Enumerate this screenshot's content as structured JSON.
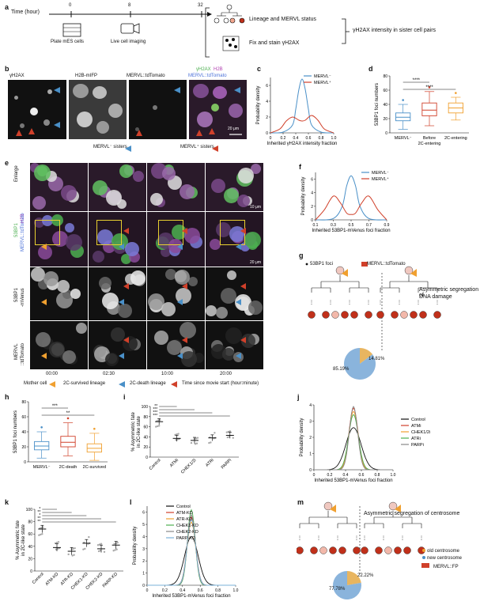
{
  "panels": {
    "a": {
      "label": "a",
      "time_label": "Time (hour)",
      "ticks": [
        "0",
        "8",
        "32"
      ],
      "step1": "Plate mES cells",
      "step2": "Live cell imaging",
      "out1": "Lineage and MERVL status",
      "out2": "Fix and stain γH2AX",
      "result": "γH2AX intensity in sister cell pairs"
    },
    "b": {
      "label": "b",
      "titles": [
        "γH2AX",
        "H2B-mIFP",
        "MERVL::tdTomato"
      ],
      "merge_title_1": "γH2AX",
      "merge_title_2": "H2B",
      "merge_title_3": "MERVL::tdTomato",
      "scale": "20 μm",
      "legend_neg": "MERVL⁻ sisters",
      "legend_pos": "MERVL⁺ sisters"
    },
    "c": {
      "label": "c",
      "ylabel": "Probability density",
      "xlabel": "Inherited γH2AX intensity fraction",
      "yticks": [
        "0",
        "2",
        "4",
        "6"
      ],
      "xticks": [
        "0",
        "0.2",
        "0.4",
        "0.6",
        "0.8",
        "1.0"
      ],
      "legend": [
        "MERVL⁻",
        "MERVL⁺"
      ]
    },
    "d": {
      "label": "d",
      "ylabel": "53BP1 foci numbers",
      "yticks": [
        "0",
        "20",
        "40",
        "60",
        "80"
      ],
      "categories": [
        "MERVL⁻",
        "Before\n2C-entering",
        "2C-entering"
      ],
      "cat1": "MERVL⁻",
      "cat2a": "Before",
      "cat2b": "2C-entering",
      "cat3": "2C-entering",
      "sig": [
        "****",
        "****"
      ]
    },
    "e": {
      "label": "e",
      "row_labels": [
        "Enlarge",
        "53BP1 H2B MERVL::tdTomato",
        "53BP1 -mVenus",
        "MERVL ::tdTomato"
      ],
      "row1": "Enlarge",
      "row2a": "53BP1",
      "row2b": "H2B",
      "row2c": "MERVL::tdTomato",
      "row3a": "53BP1",
      "row3b": "-mVenus",
      "row4a": "MERVL",
      "row4b": "::tdTomato",
      "scale_small": "10 μm",
      "scale_big": "20 μm",
      "times": [
        "00:00",
        "02:30",
        "10:00",
        "20:00"
      ],
      "legend": [
        "Mother cell",
        "2C-survived lineage",
        "2C-death lineage",
        "Time since movie start (hour:minute)"
      ]
    },
    "f": {
      "label": "f",
      "ylabel": "Probability density",
      "xlabel": "Inherited 53BP1-mVenus foci fraction",
      "yticks": [
        "0",
        "2",
        "4",
        "6"
      ],
      "xticks": [
        "0.1",
        "0.3",
        "0.5",
        "0.7",
        "0.9"
      ],
      "legend": [
        "MERVL⁻",
        "MERVL⁺"
      ]
    },
    "g": {
      "label": "g",
      "legend_foci": "53BP1 foci",
      "legend_mervl": "MERVL::tdTomato",
      "title": "Asymmetric segregation of DNA damage",
      "title_a": "Asymmetric segregation of",
      "title_b": "DNA damage",
      "pie_major": "85.19%",
      "pie_minor": "14.81%"
    },
    "h": {
      "label": "h",
      "ylabel": "53BP1 foci numbers",
      "yticks": [
        "0",
        "20",
        "40",
        "60",
        "80"
      ],
      "categories": [
        "MERVL⁻",
        "2C-death",
        "2C-survived"
      ],
      "sig": [
        "***",
        "**"
      ]
    },
    "i": {
      "label": "i",
      "ylabel": "% Asymmetric fate in 2C-like state",
      "ylabel_a": "% Asymmetric fate",
      "ylabel_b": "in 2C-like state",
      "yticks": [
        "0",
        "20",
        "40",
        "60",
        "80",
        "100"
      ],
      "categories": [
        "Control",
        "ATMi",
        "CHEK1/2i",
        "ATRi",
        "PARPi"
      ],
      "sig": [
        "**",
        "***",
        "***",
        "***",
        "**"
      ]
    },
    "j": {
      "label": "j",
      "ylabel": "Probability density",
      "xlabel": "Inherited 53BP1-mVenus foci fraction",
      "yticks": [
        "0",
        "1",
        "2",
        "3",
        "4"
      ],
      "xticks": [
        "0",
        "0.2",
        "0.4",
        "0.6",
        "0.8",
        "1.0"
      ],
      "legend": [
        "Control",
        "ATMi",
        "CHEK1/2i",
        "ATRi",
        "PARPi"
      ]
    },
    "k": {
      "label": "k",
      "ylabel_a": "% Asymmetric fate",
      "ylabel_b": "in 2C-like state",
      "yticks": [
        "0",
        "20",
        "40",
        "60",
        "80",
        "100"
      ],
      "categories": [
        "Control",
        "ATM-KD",
        "ATR-KD",
        "CHEK1-KD",
        "CHEK2-KD",
        "PARP-KD"
      ],
      "sig": [
        "*",
        "**",
        "*",
        "**",
        "**",
        "**"
      ]
    },
    "l": {
      "label": "l",
      "ylabel": "Probability density",
      "xlabel": "Inherited 53BP1-mVenus foci fraction",
      "yticks": [
        "0",
        "1",
        "2",
        "3",
        "4",
        "5",
        "6"
      ],
      "xticks": [
        "0",
        "0.2",
        "0.4",
        "0.6",
        "0.8",
        "1.0"
      ],
      "legend": [
        "Control",
        "ATM-KD",
        "ATR-KD",
        "CHEK1-KD",
        "CHEK2-KD",
        "PARP-KD"
      ]
    },
    "m": {
      "label": "m",
      "title": "Asymmetric segregation of centrosome",
      "legend": [
        "old centrosome",
        "new centrosome",
        "MERVL::FP"
      ],
      "pie_major": "77.78%",
      "pie_minor": "22.22%"
    }
  },
  "colors": {
    "blue": "#4a90c8",
    "red": "#d0402a",
    "orange": "#f0a030",
    "green": "#4caf50",
    "gray": "#888888",
    "pie_blue": "#8ab4dc",
    "pie_orange": "#e8b560"
  },
  "chart_data": [
    {
      "type": "line",
      "panel": "c",
      "xlabel": "Inherited γH2AX intensity fraction",
      "ylabel": "Probability density",
      "xlim": [
        0,
        1
      ],
      "ylim": [
        0,
        7
      ],
      "series": [
        {
          "name": "MERVL⁻",
          "x": [
            0.0,
            0.2,
            0.35,
            0.4,
            0.45,
            0.5,
            0.55,
            0.6,
            0.65,
            0.8,
            1.0
          ],
          "y": [
            0,
            0.1,
            1.0,
            3.0,
            5.5,
            6.8,
            5.5,
            3.0,
            1.0,
            0.1,
            0
          ]
        },
        {
          "name": "MERVL⁺",
          "x": [
            0.0,
            0.15,
            0.25,
            0.35,
            0.45,
            0.5,
            0.55,
            0.65,
            0.75,
            0.85,
            1.0
          ],
          "y": [
            0,
            0.5,
            1.5,
            2.0,
            1.6,
            1.5,
            1.6,
            2.2,
            1.6,
            0.5,
            0
          ]
        }
      ]
    },
    {
      "type": "box",
      "panel": "d",
      "ylabel": "53BP1 foci numbers",
      "ylim": [
        0,
        80
      ],
      "categories": [
        "MERVL⁻",
        "Before 2C-entering",
        "2C-entering"
      ],
      "series": [
        {
          "name": "MERVL⁻",
          "min": 5,
          "q1": 17,
          "median": 22,
          "q3": 28,
          "max": 40
        },
        {
          "name": "Before 2C-entering",
          "min": 10,
          "q1": 24,
          "median": 32,
          "q3": 42,
          "max": 58
        },
        {
          "name": "2C-entering",
          "min": 18,
          "q1": 28,
          "median": 35,
          "q3": 42,
          "max": 50
        }
      ]
    },
    {
      "type": "line",
      "panel": "f",
      "xlabel": "Inherited 53BP1-mVenus foci fraction",
      "ylabel": "Probability density",
      "xlim": [
        0.1,
        0.9
      ],
      "ylim": [
        0,
        7
      ],
      "series": [
        {
          "name": "MERVL⁻",
          "x": [
            0.1,
            0.3,
            0.4,
            0.45,
            0.5,
            0.55,
            0.6,
            0.7,
            0.9
          ],
          "y": [
            0,
            0.2,
            2.0,
            5.0,
            6.5,
            5.0,
            2.0,
            0.2,
            0
          ]
        },
        {
          "name": "MERVL⁺",
          "x": [
            0.1,
            0.2,
            0.3,
            0.38,
            0.45,
            0.5,
            0.55,
            0.62,
            0.7,
            0.8,
            0.9
          ],
          "y": [
            0,
            1.5,
            3.5,
            2.5,
            1.0,
            0.8,
            1.0,
            2.5,
            3.5,
            1.5,
            0
          ]
        }
      ]
    },
    {
      "type": "pie",
      "panel": "g",
      "slices": [
        {
          "label": "85.19%",
          "value": 85.19
        },
        {
          "label": "14.81%",
          "value": 14.81
        }
      ]
    },
    {
      "type": "box",
      "panel": "h",
      "ylabel": "53BP1 foci numbers",
      "ylim": [
        0,
        80
      ],
      "categories": [
        "MERVL⁻",
        "2C-death",
        "2C-survived"
      ],
      "series": [
        {
          "name": "MERVL⁻",
          "min": 5,
          "q1": 16,
          "median": 21,
          "q3": 27,
          "max": 40
        },
        {
          "name": "2C-death",
          "min": 8,
          "q1": 20,
          "median": 26,
          "q3": 34,
          "max": 52
        },
        {
          "name": "2C-survived",
          "min": 2,
          "q1": 13,
          "median": 18,
          "q3": 24,
          "max": 38
        }
      ]
    },
    {
      "type": "scatter",
      "panel": "i",
      "ylabel": "% Asymmetric fate in 2C-like state",
      "ylim": [
        0,
        100
      ],
      "categories": [
        "Control",
        "ATMi",
        "CHEK1/2i",
        "ATRi",
        "PARPi"
      ],
      "values": [
        70,
        37,
        33,
        38,
        43
      ]
    },
    {
      "type": "line",
      "panel": "j",
      "xlabel": "Inherited 53BP1-mVenus foci fraction",
      "ylabel": "Probability density",
      "xlim": [
        0,
        1
      ],
      "ylim": [
        0,
        4
      ],
      "series": [
        {
          "name": "Control",
          "peak": 2.6,
          "width": 0.2
        },
        {
          "name": "ATMi",
          "peak": 3.8,
          "width": 0.12
        },
        {
          "name": "CHEK1/2i",
          "peak": 3.6,
          "width": 0.12
        },
        {
          "name": "ATRi",
          "peak": 3.4,
          "width": 0.13
        },
        {
          "name": "PARPi",
          "peak": 3.9,
          "width": 0.11
        }
      ]
    },
    {
      "type": "scatter",
      "panel": "k",
      "ylabel": "% Asymmetric fate in 2C-like state",
      "ylim": [
        0,
        100
      ],
      "categories": [
        "Control",
        "ATM-KD",
        "ATR-KD",
        "CHEK1-KD",
        "CHEK2-KD",
        "PARP-KD"
      ],
      "values": [
        68,
        38,
        32,
        45,
        36,
        42
      ]
    },
    {
      "type": "line",
      "panel": "l",
      "xlabel": "Inherited 53BP1-mVenus foci fraction",
      "ylabel": "Probability density",
      "xlim": [
        0,
        1
      ],
      "ylim": [
        0,
        6.5
      ],
      "series": [
        {
          "name": "Control",
          "peak": 4.0,
          "width": 0.16
        },
        {
          "name": "ATM-KD",
          "peak": 5.6,
          "width": 0.1
        },
        {
          "name": "ATR-KD",
          "peak": 5.2,
          "width": 0.1
        },
        {
          "name": "CHEK1-KD",
          "peak": 6.2,
          "width": 0.09
        },
        {
          "name": "CHEK2-KD",
          "peak": 5.8,
          "width": 0.095
        },
        {
          "name": "PARP-KD",
          "peak": 5.4,
          "width": 0.1
        }
      ]
    },
    {
      "type": "pie",
      "panel": "m",
      "slices": [
        {
          "label": "77.78%",
          "value": 77.78
        },
        {
          "label": "22.22%",
          "value": 22.22
        }
      ]
    }
  ]
}
